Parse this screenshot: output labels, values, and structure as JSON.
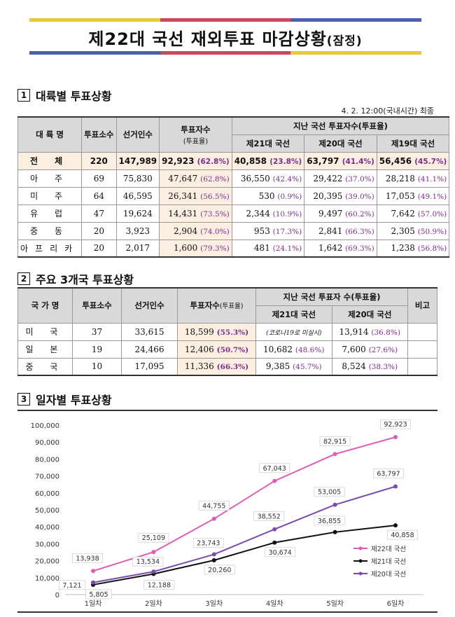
{
  "title": {
    "main": "제22대 국선 재외투표 마감상황",
    "sub": "(잠정)"
  },
  "colors": {
    "bar1": "#e7c836",
    "bar2": "#c9485c",
    "bar3": "#4b5fb0",
    "bar4": "#ffffff"
  },
  "section1": {
    "num": "1",
    "heading": "대륙별 투표상황",
    "note": "4. 2. 12:00(국내시간) 최종",
    "headers": {
      "region": "대 륙 명",
      "polls": "투표소수",
      "voters": "선거인수",
      "turnout": "투표자수",
      "turnout_sub": "(투표율)",
      "past": "지난 국선 투표자수(투표율)",
      "e21": "제21대 국선",
      "e20": "제20대 국선",
      "e19": "제19대 국선"
    },
    "rows": [
      {
        "name": "전 체",
        "polls": "220",
        "voters": "147,989",
        "turnout": "92,923",
        "turnout_pct": "(62.8%)",
        "e21": "40,858",
        "e21_pct": "(23.8%)",
        "e20": "63,797",
        "e20_pct": "(41.4%)",
        "e19": "56,456",
        "e19_pct": "(45.7%)"
      },
      {
        "name": "아 주",
        "polls": "69",
        "voters": "75,830",
        "turnout": "47,647",
        "turnout_pct": "(62.8%)",
        "e21": "36,550",
        "e21_pct": "(42.4%)",
        "e20": "29,422",
        "e20_pct": "(37.0%)",
        "e19": "28,218",
        "e19_pct": "(41.1%)"
      },
      {
        "name": "미 주",
        "polls": "64",
        "voters": "46,595",
        "turnout": "26,341",
        "turnout_pct": "(56.5%)",
        "e21": "530",
        "e21_pct": "(0.9%)",
        "e20": "20,395",
        "e20_pct": "(39.0%)",
        "e19": "17,053",
        "e19_pct": "(49.1%)"
      },
      {
        "name": "유 럽",
        "polls": "47",
        "voters": "19,624",
        "turnout": "14,431",
        "turnout_pct": "(73.5%)",
        "e21": "2,344",
        "e21_pct": "(10.9%)",
        "e20": "9,497",
        "e20_pct": "(60.2%)",
        "e19": "7,642",
        "e19_pct": "(57.0%)"
      },
      {
        "name": "중 동",
        "polls": "20",
        "voters": "3,923",
        "turnout": "2,904",
        "turnout_pct": "(74.0%)",
        "e21": "953",
        "e21_pct": "(17.3%)",
        "e20": "2,841",
        "e20_pct": "(66.3%)",
        "e19": "2,305",
        "e19_pct": "(50.9%)"
      },
      {
        "name": "아프리카",
        "polls": "20",
        "voters": "2,017",
        "turnout": "1,600",
        "turnout_pct": "(79.3%)",
        "e21": "481",
        "e21_pct": "(24.1%)",
        "e20": "1,642",
        "e20_pct": "(69.3%)",
        "e19": "1,238",
        "e19_pct": "(56.8%)"
      }
    ]
  },
  "section2": {
    "num": "2",
    "heading": "주요 3개국 투표상황",
    "headers": {
      "country": "국 가 명",
      "polls": "투표소수",
      "voters": "선거인수",
      "turnout": "투표자수",
      "turnout_sub": "(투표율)",
      "past": "지난 국선 투표자 수(투표율)",
      "e21": "제21대 국선",
      "e20": "제20대 국선",
      "note": "비고"
    },
    "rows": [
      {
        "name": "미 국",
        "polls": "37",
        "voters": "33,615",
        "turnout": "18,599",
        "turnout_pct": "(55.3%)",
        "e21": "(코로나19로 미실시)",
        "e21_pct": "",
        "e20": "13,914",
        "e20_pct": "(36.8%)"
      },
      {
        "name": "일 본",
        "polls": "19",
        "voters": "24,466",
        "turnout": "12,406",
        "turnout_pct": "(50.7%)",
        "e21": "10,682",
        "e21_pct": "(48.6%)",
        "e20": "7,600",
        "e20_pct": "(27.6%)"
      },
      {
        "name": "중 국",
        "polls": "10",
        "voters": "17,095",
        "turnout": "11,336",
        "turnout_pct": "(66.3%)",
        "e21": "9,385",
        "e21_pct": "(45.7%)",
        "e20": "8,524",
        "e20_pct": "(38.3%)"
      }
    ]
  },
  "section3": {
    "num": "3",
    "heading": "일자별 투표상황"
  },
  "chart_data": {
    "type": "line",
    "categories": [
      "1일차",
      "2일차",
      "3일차",
      "4일차",
      "5일차",
      "6일차"
    ],
    "ylim": [
      0,
      100000
    ],
    "y_ticks": [
      "0",
      "10,000",
      "20,000",
      "30,000",
      "40,000",
      "50,000",
      "60,000",
      "70,000",
      "80,000",
      "90,000",
      "100,000"
    ],
    "series": [
      {
        "name": "제22대 국선",
        "color": "#e05cb4",
        "values": [
          13938,
          25109,
          44755,
          67043,
          82915,
          92923
        ],
        "labels": [
          "13,938",
          "25,109",
          "44,755",
          "67,043",
          "82,915",
          "92,923"
        ]
      },
      {
        "name": "제21대 국선",
        "color": "#111111",
        "values": [
          5805,
          12188,
          20260,
          30674,
          36855,
          40858
        ],
        "labels": [
          "5,805",
          "12,188",
          "20,260",
          "30,674",
          "36,855",
          "40,858"
        ]
      },
      {
        "name": "제20대 국선",
        "color": "#7b4bb0",
        "values": [
          7121,
          13534,
          23743,
          38552,
          53005,
          63797
        ],
        "labels": [
          "7,121",
          "13,534",
          "23,743",
          "38,552",
          "53,005",
          "63,797"
        ]
      }
    ]
  }
}
